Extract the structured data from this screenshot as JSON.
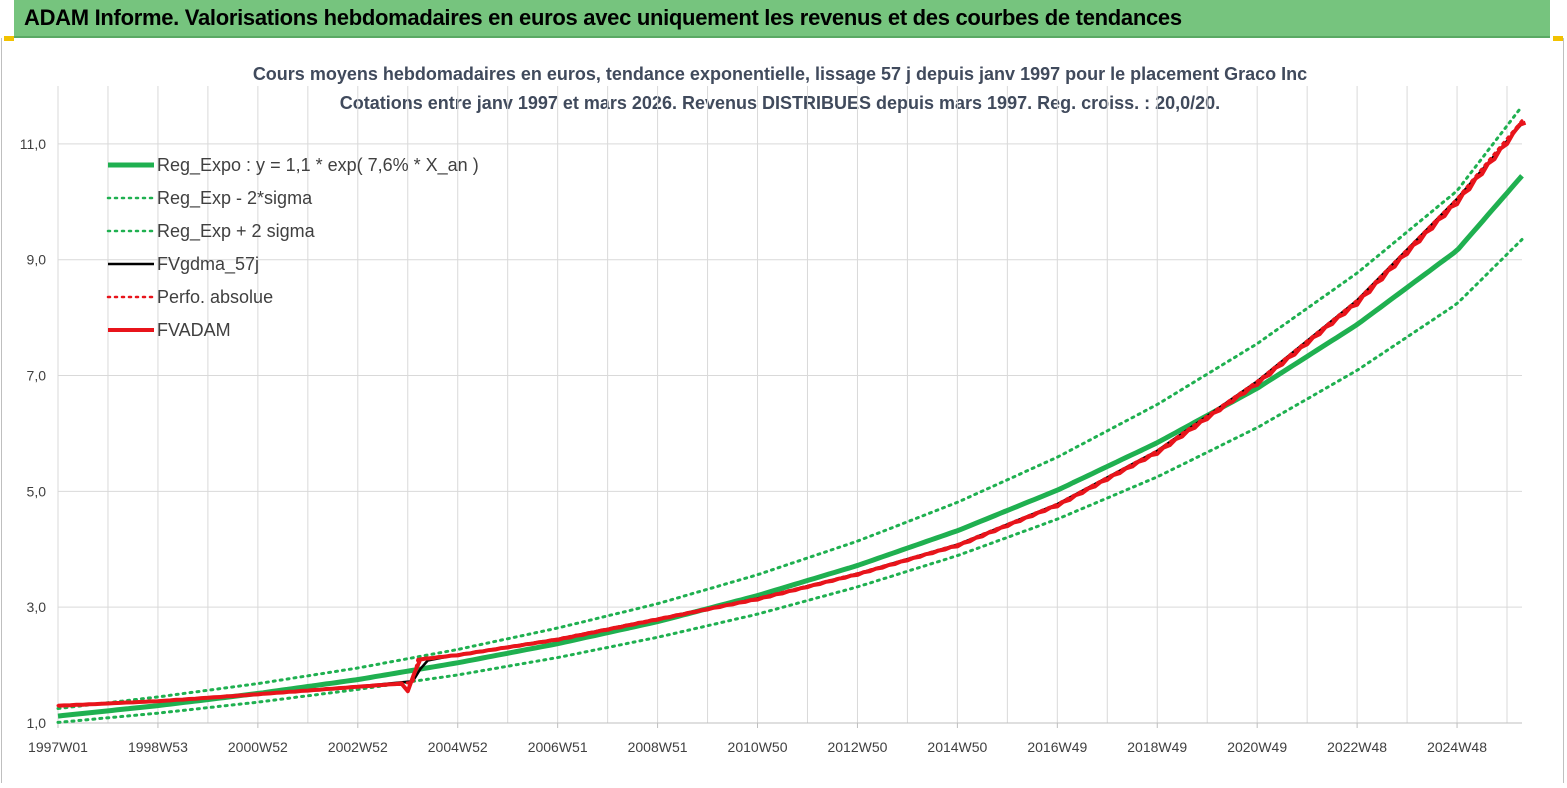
{
  "header": {
    "title": "ADAM Informe. Valorisations hebdomadaires en euros avec uniquement les revenus et des courbes de tendances"
  },
  "colors": {
    "banner": "#76c47e",
    "trend": "#1fb050",
    "fvgdma": "#000000",
    "fvadam": "#e8141b",
    "perfo": "#e8141b",
    "grid": "#d9d9d9"
  },
  "chart_data": {
    "type": "line",
    "title": "Cours moyens hebdomadaires en euros, tendance exponentielle, lissage 57 j depuis janv 1997 pour le placement Graco Inc",
    "subtitle": "Cotations entre janv 1997 et mars 2026. Revenus DISTRIBUES depuis mars 1997. Reg. croiss. : 20,0/20.",
    "ylim": [
      1.0,
      12.0
    ],
    "y_ticks": [
      "1,0",
      "3,0",
      "5,0",
      "7,0",
      "9,0",
      "11,0"
    ],
    "y_tick_values": [
      1,
      3,
      5,
      7,
      9,
      11
    ],
    "x_ticks": [
      "1997W01",
      "1998W53",
      "2000W52",
      "2002W52",
      "2004W52",
      "2006W51",
      "2008W51",
      "2010W50",
      "2012W50",
      "2014W50",
      "2016W49",
      "2018W49",
      "2020W49",
      "2022W48",
      "2024W48"
    ],
    "x_tick_years": [
      1997.0,
      1999.0,
      2001.0,
      2003.0,
      2005.0,
      2007.0,
      2009.0,
      2011.0,
      2013.0,
      2015.0,
      2017.0,
      2019.0,
      2021.0,
      2023.0,
      2025.0
    ],
    "x_range": [
      1997.0,
      2026.3
    ],
    "legend_position": "top-left",
    "grid": true,
    "series": [
      {
        "name": "Reg_Expo : y = 1,1 * exp( 7,6% *  X_an )",
        "style": "solid-thick",
        "color": "#1fb050",
        "x": [
          1997,
          1999,
          2001,
          2003,
          2005,
          2007,
          2009,
          2011,
          2013,
          2015,
          2017,
          2019,
          2021,
          2023,
          2025,
          2026.3
        ],
        "values": [
          1.12,
          1.3,
          1.51,
          1.75,
          2.04,
          2.37,
          2.75,
          3.2,
          3.72,
          4.32,
          5.02,
          5.84,
          6.78,
          7.88,
          9.16,
          10.45
        ]
      },
      {
        "name": "Reg_Exp - 2*sigma",
        "style": "dotted",
        "color": "#1fb050",
        "x": [
          1997,
          1999,
          2001,
          2003,
          2005,
          2007,
          2009,
          2011,
          2013,
          2015,
          2017,
          2019,
          2021,
          2023,
          2025,
          2026.3
        ],
        "values": [
          1.01,
          1.17,
          1.36,
          1.58,
          1.83,
          2.13,
          2.48,
          2.88,
          3.35,
          3.89,
          4.52,
          5.25,
          6.1,
          7.09,
          8.24,
          9.35
        ]
      },
      {
        "name": "Reg_Exp + 2 sigma",
        "style": "dotted",
        "color": "#1fb050",
        "x": [
          1997,
          1999,
          2001,
          2003,
          2005,
          2007,
          2009,
          2011,
          2013,
          2015,
          2017,
          2019,
          2021,
          2023,
          2025,
          2026.3
        ],
        "values": [
          1.25,
          1.45,
          1.68,
          1.95,
          2.27,
          2.64,
          3.06,
          3.56,
          4.14,
          4.81,
          5.59,
          6.5,
          7.55,
          8.77,
          10.19,
          11.65
        ]
      },
      {
        "name": "FVgdma_57j",
        "style": "solid",
        "color": "#000000",
        "x": [
          1997,
          1999,
          2001,
          2003,
          2004.1,
          2004.25,
          2004.4,
          2005,
          2007,
          2009,
          2011,
          2013,
          2015,
          2017,
          2019,
          2021,
          2023,
          2025,
          2026.3
        ],
        "values": [
          1.3,
          1.38,
          1.5,
          1.63,
          1.72,
          1.93,
          2.08,
          2.18,
          2.45,
          2.8,
          3.15,
          3.58,
          4.08,
          4.78,
          5.7,
          6.9,
          8.3,
          10.05,
          11.35
        ]
      },
      {
        "name": "Perfo. absolue",
        "style": "dotted",
        "color": "#e8141b",
        "x": [
          1997,
          1999,
          2001,
          2003,
          2004.1,
          2004.2,
          2005,
          2007,
          2009,
          2011,
          2013,
          2015,
          2017,
          2019,
          2021,
          2023,
          2025,
          2026.3
        ],
        "values": [
          1.3,
          1.38,
          1.5,
          1.63,
          1.7,
          2.1,
          2.18,
          2.45,
          2.8,
          3.15,
          3.58,
          4.08,
          4.78,
          5.7,
          6.9,
          8.3,
          10.05,
          11.4
        ]
      },
      {
        "name": "FVADAM",
        "style": "solid-thick-stepped",
        "color": "#e8141b",
        "x": [
          1997,
          1999,
          2001,
          2003,
          2004.1,
          2004.2,
          2005,
          2007,
          2009,
          2011,
          2013,
          2015,
          2017,
          2019,
          2021,
          2023,
          2025,
          2026.3
        ],
        "values": [
          1.3,
          1.38,
          1.5,
          1.63,
          1.7,
          2.1,
          2.18,
          2.45,
          2.8,
          3.15,
          3.58,
          4.08,
          4.78,
          5.7,
          6.9,
          8.3,
          10.05,
          11.4
        ]
      }
    ]
  }
}
